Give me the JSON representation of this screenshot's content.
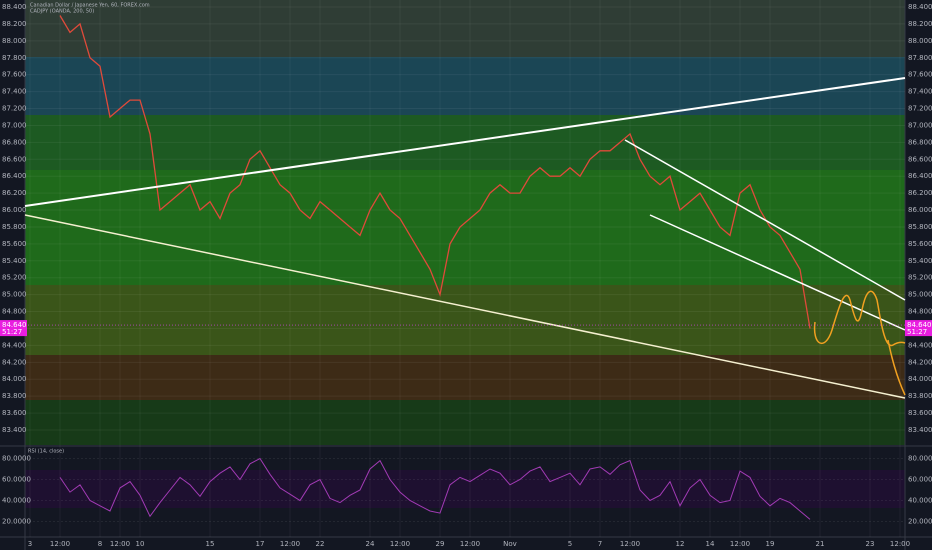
{
  "chart_data": {
    "type": "line",
    "title": "Canadian Dollar / Japanese Yen, 60, FOREX.com",
    "subtitle": "CADJPY (OANDA, 200, 50)",
    "categories": [
      "3",
      null,
      null,
      "12:00",
      null,
      null,
      null,
      "8",
      null,
      "12:00",
      null,
      "10",
      null,
      null,
      null,
      null,
      null,
      null,
      "15",
      null,
      null,
      null,
      null,
      "17",
      null,
      null,
      "12:00",
      null,
      null,
      "22",
      null,
      null,
      null,
      null,
      "24",
      null,
      null,
      "12:00",
      null,
      null,
      null,
      "29",
      null,
      null,
      "12:00",
      null,
      null,
      null,
      "Nov",
      null,
      null,
      null,
      null,
      null,
      "5",
      null,
      null,
      "7",
      null,
      null,
      "12:00",
      null,
      null,
      null,
      null,
      "12",
      null,
      null,
      "14",
      null,
      null,
      "12:00",
      null,
      null,
      "19",
      null,
      null,
      null,
      null,
      "21",
      null,
      null,
      null,
      null,
      "23",
      null,
      null,
      "12:00"
    ],
    "series": [
      {
        "name": "CADJPY",
        "color": "#e04a3a",
        "values": [
          null,
          null,
          null,
          88.3,
          88.1,
          88.2,
          87.8,
          87.7,
          87.1,
          87.2,
          87.3,
          87.3,
          86.9,
          86.0,
          86.1,
          86.2,
          86.3,
          86.0,
          86.1,
          85.9,
          86.2,
          86.3,
          86.6,
          86.7,
          86.5,
          86.3,
          86.2,
          86.0,
          85.9,
          86.1,
          86.0,
          85.9,
          85.8,
          85.7,
          86.0,
          86.2,
          86.0,
          85.9,
          85.7,
          85.5,
          85.3,
          85.0,
          85.6,
          85.8,
          85.9,
          86.0,
          86.2,
          86.3,
          86.2,
          86.2,
          86.4,
          86.5,
          86.4,
          86.4,
          86.5,
          86.4,
          86.6,
          86.7,
          86.7,
          86.8,
          86.9,
          86.6,
          86.4,
          86.3,
          86.4,
          86.0,
          86.1,
          86.2,
          86.0,
          85.8,
          85.7,
          86.2,
          86.3,
          86.0,
          85.8,
          85.7,
          85.5,
          85.3,
          84.6,
          null,
          null,
          null,
          null,
          null,
          null,
          null,
          null,
          null
        ]
      }
    ],
    "ylim": [
      83.4,
      88.4
    ],
    "yticks": [
      {
        "value": 83.4,
        "label": "83.400"
      },
      {
        "value": 83.6,
        "label": "83.600"
      },
      {
        "value": 83.8,
        "label": "83.800"
      },
      {
        "value": 84.0,
        "label": "84.000"
      },
      {
        "value": 84.2,
        "label": "84.200"
      },
      {
        "value": 84.4,
        "label": "84.400"
      },
      {
        "value": 84.6,
        "label": "84.600"
      },
      {
        "value": 84.8,
        "label": "84.800"
      },
      {
        "value": 85.0,
        "label": "85.000"
      },
      {
        "value": 85.2,
        "label": "85.200"
      },
      {
        "value": 85.4,
        "label": "85.400"
      },
      {
        "value": 85.6,
        "label": "85.600"
      },
      {
        "value": 85.8,
        "label": "85.800"
      },
      {
        "value": 86.0,
        "label": "86.000"
      },
      {
        "value": 86.2,
        "label": "86.200"
      },
      {
        "value": 86.4,
        "label": "86.400"
      },
      {
        "value": 86.6,
        "label": "86.600"
      },
      {
        "value": 86.8,
        "label": "86.800"
      },
      {
        "value": 87.0,
        "label": "87.000"
      },
      {
        "value": 87.2,
        "label": "87.200"
      },
      {
        "value": 87.4,
        "label": "87.400"
      },
      {
        "value": 87.6,
        "label": "87.600"
      },
      {
        "value": 87.8,
        "label": "87.800"
      },
      {
        "value": 88.0,
        "label": "88.000"
      },
      {
        "value": 88.2,
        "label": "88.200"
      },
      {
        "value": 88.4,
        "label": "88.400"
      }
    ],
    "price_tag": {
      "value": 84.64,
      "label": "84.640",
      "countdown": "51:27"
    },
    "rsi": {
      "title": "RSI (14, close)",
      "color": "#a23bb5",
      "values": [
        null,
        null,
        null,
        62,
        48,
        55,
        40,
        35,
        30,
        52,
        58,
        45,
        25,
        38,
        50,
        62,
        55,
        44,
        58,
        66,
        72,
        60,
        75,
        80,
        65,
        52,
        46,
        40,
        55,
        60,
        42,
        38,
        45,
        50,
        70,
        78,
        60,
        48,
        40,
        35,
        30,
        28,
        55,
        62,
        58,
        64,
        70,
        66,
        55,
        60,
        68,
        72,
        58,
        62,
        66,
        55,
        70,
        72,
        65,
        74,
        78,
        50,
        40,
        45,
        58,
        35,
        52,
        60,
        45,
        38,
        40,
        68,
        62,
        44,
        35,
        42,
        38,
        30,
        22,
        null,
        null,
        null,
        null,
        null,
        null,
        null,
        null,
        null
      ],
      "ylim": [
        10,
        90
      ],
      "yticks": [
        {
          "value": 20,
          "label": "20.0000"
        },
        {
          "value": 40,
          "label": "40.0000"
        },
        {
          "value": 60,
          "label": "60.0000"
        },
        {
          "value": 80,
          "label": "80.0000"
        }
      ]
    }
  }
}
